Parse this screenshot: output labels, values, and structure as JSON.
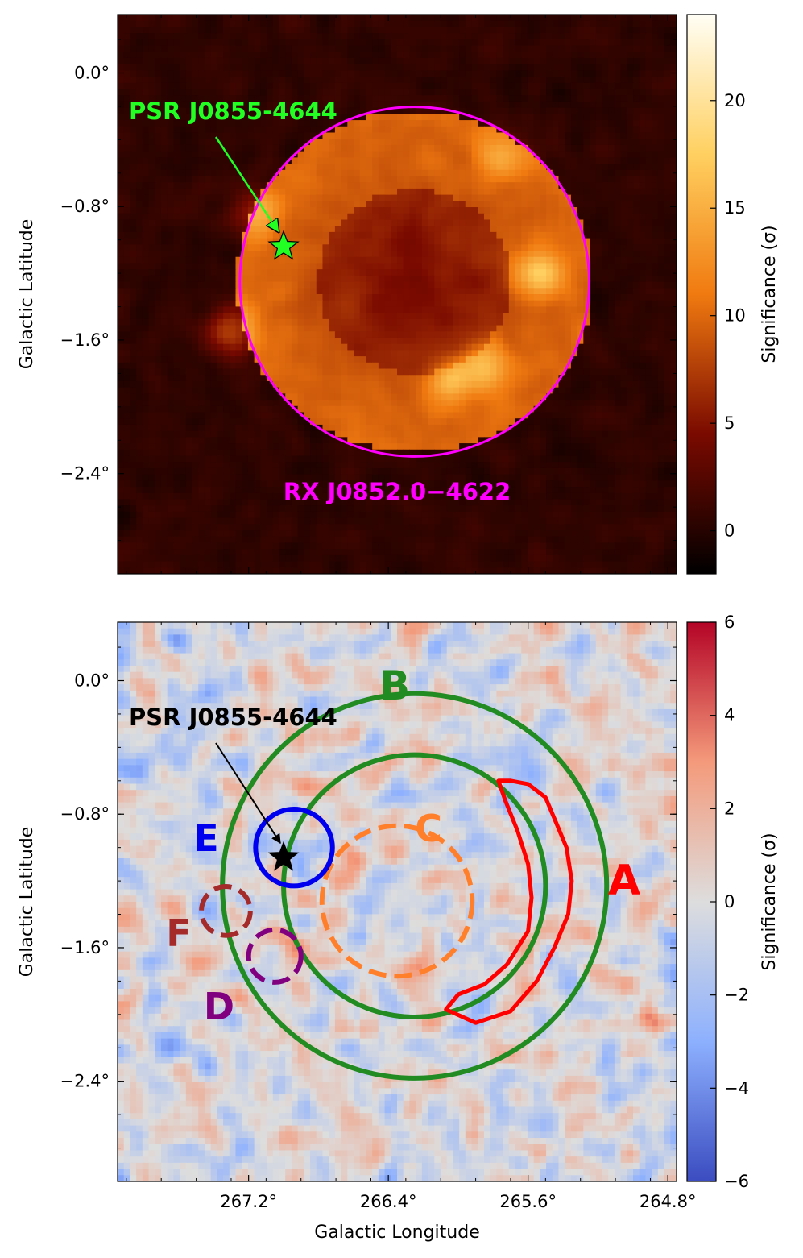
{
  "chart_data": [
    {
      "type": "heatmap",
      "xlabel": "",
      "ylabel": "Galactic Latitude",
      "ylim": [
        -3.0,
        0.35
      ],
      "xlim": [
        267.95,
        264.75
      ],
      "yticks": [
        {
          "value": 0.0,
          "label": "0.0°"
        },
        {
          "value": -0.8,
          "label": "−0.8°"
        },
        {
          "value": -1.6,
          "label": "−1.6°"
        },
        {
          "value": -2.4,
          "label": "−2.4°"
        }
      ],
      "colorbar": {
        "label": "Significance (σ)",
        "colormap": "afmhot",
        "range": [
          -2,
          24
        ],
        "ticks": [
          {
            "value": 0,
            "label": "0"
          },
          {
            "value": 5,
            "label": "5"
          },
          {
            "value": 10,
            "label": "10"
          },
          {
            "value": 15,
            "label": "15"
          },
          {
            "value": 20,
            "label": "20"
          }
        ]
      },
      "overlays": {
        "snr": {
          "label": "RX J0852.0−4622",
          "color": "#ff00ff",
          "l": 266.25,
          "b": -1.25,
          "r": 1.0
        },
        "pulsar": {
          "label": "PSR J0855-4644",
          "color": "#22ff22",
          "l": 267.0,
          "b": -1.04
        }
      },
      "features": [
        {
          "l": 265.55,
          "b": -1.2,
          "amp": 8
        },
        {
          "l": 265.85,
          "b": -1.75,
          "amp": 7
        },
        {
          "l": 266.05,
          "b": -1.85,
          "amp": 6
        },
        {
          "l": 267.3,
          "b": -1.55,
          "amp": 7
        },
        {
          "l": 267.15,
          "b": -0.85,
          "amp": 5
        },
        {
          "l": 265.75,
          "b": -0.5,
          "amp": 5
        }
      ]
    },
    {
      "type": "heatmap",
      "xlabel": "Galactic Longitude",
      "ylabel": "Galactic Latitude",
      "ylim": [
        -3.0,
        0.35
      ],
      "xlim": [
        267.95,
        264.75
      ],
      "xticks": [
        {
          "value": 267.2,
          "label": "267.2°"
        },
        {
          "value": 266.4,
          "label": "266.4°"
        },
        {
          "value": 265.6,
          "label": "265.6°"
        },
        {
          "value": 264.8,
          "label": "264.8°"
        }
      ],
      "yticks": [
        {
          "value": 0.0,
          "label": "0.0°"
        },
        {
          "value": -0.8,
          "label": "−0.8°"
        },
        {
          "value": -1.6,
          "label": "−1.6°"
        },
        {
          "value": -2.4,
          "label": "−2.4°"
        }
      ],
      "colorbar": {
        "label": "Significance (σ)",
        "colormap": "coolwarm",
        "range": [
          -6,
          6
        ],
        "ticks": [
          {
            "value": -6,
            "label": "−6"
          },
          {
            "value": -4,
            "label": "−4"
          },
          {
            "value": -2,
            "label": "−2"
          },
          {
            "value": 0,
            "label": "0"
          },
          {
            "value": 2,
            "label": "2"
          },
          {
            "value": 4,
            "label": "4"
          },
          {
            "value": 6,
            "label": "6"
          }
        ]
      },
      "pulsar": {
        "label": "PSR J0855-4644",
        "color": "#000000",
        "l": 267.0,
        "b": -1.06
      },
      "regions": [
        {
          "id": "B",
          "label": "B",
          "color": "#228b22",
          "l": 266.25,
          "b": -1.23,
          "r": 1.1,
          "r_inner": 0.75,
          "style": "solid"
        },
        {
          "id": "C",
          "label": "C",
          "color": "#ff7f2a",
          "l": 266.35,
          "b": -1.32,
          "r": 0.43,
          "style": "dashed"
        },
        {
          "id": "E",
          "label": "E",
          "color": "#0000ee",
          "l": 266.94,
          "b": -1.0,
          "r": 0.22,
          "style": "solid"
        },
        {
          "id": "F",
          "label": "F",
          "color": "#a52a2a",
          "l": 267.33,
          "b": -1.38,
          "r": 0.14,
          "style": "dashed"
        },
        {
          "id": "D",
          "label": "D",
          "color": "#800080",
          "l": 267.05,
          "b": -1.65,
          "r": 0.15,
          "style": "dashed"
        },
        {
          "id": "A",
          "label": "A",
          "color": "#ff0000",
          "style": "solid"
        }
      ],
      "region_a_contour": [
        [
          265.7,
          -0.6
        ],
        [
          265.6,
          -0.62
        ],
        [
          265.5,
          -0.7
        ],
        [
          265.44,
          -0.85
        ],
        [
          265.38,
          -1.0
        ],
        [
          265.35,
          -1.2
        ],
        [
          265.37,
          -1.4
        ],
        [
          265.45,
          -1.6
        ],
        [
          265.55,
          -1.8
        ],
        [
          265.7,
          -1.98
        ],
        [
          265.9,
          -2.05
        ],
        [
          266.07,
          -1.97
        ],
        [
          266.0,
          -1.88
        ],
        [
          265.85,
          -1.82
        ],
        [
          265.72,
          -1.7
        ],
        [
          265.6,
          -1.5
        ],
        [
          265.58,
          -1.3
        ],
        [
          265.6,
          -1.1
        ],
        [
          265.66,
          -0.9
        ],
        [
          265.73,
          -0.72
        ],
        [
          265.77,
          -0.6
        ],
        [
          265.7,
          -0.6
        ]
      ]
    }
  ]
}
